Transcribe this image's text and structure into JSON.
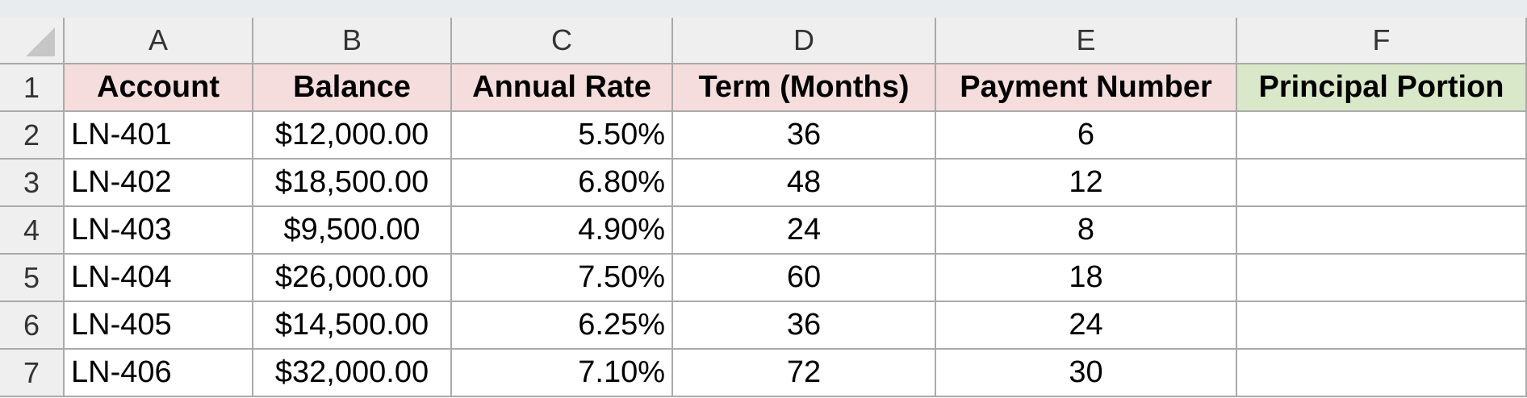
{
  "columns": [
    "A",
    "B",
    "C",
    "D",
    "E",
    "F"
  ],
  "rows": [
    "1",
    "2",
    "3",
    "4",
    "5",
    "6",
    "7"
  ],
  "headers": [
    "Account",
    "Balance",
    "Annual Rate",
    "Term (Months)",
    "Payment Number",
    "Principal Portion"
  ],
  "data": [
    [
      "LN-401",
      "$12,000.00",
      "5.50%",
      "36",
      "6",
      ""
    ],
    [
      "LN-402",
      "$18,500.00",
      "6.80%",
      "48",
      "12",
      ""
    ],
    [
      "LN-403",
      "$9,500.00",
      "4.90%",
      "24",
      "8",
      ""
    ],
    [
      "LN-404",
      "$26,000.00",
      "7.50%",
      "60",
      "18",
      ""
    ],
    [
      "LN-405",
      "$14,500.00",
      "6.25%",
      "36",
      "24",
      ""
    ],
    [
      "LN-406",
      "$32,000.00",
      "7.10%",
      "72",
      "30",
      ""
    ]
  ],
  "colors": {
    "header_fill": "#f5dddd",
    "result_header_fill": "#d9e8c8",
    "gridline": "#aaaaaa",
    "heading_fill": "#efefef"
  }
}
